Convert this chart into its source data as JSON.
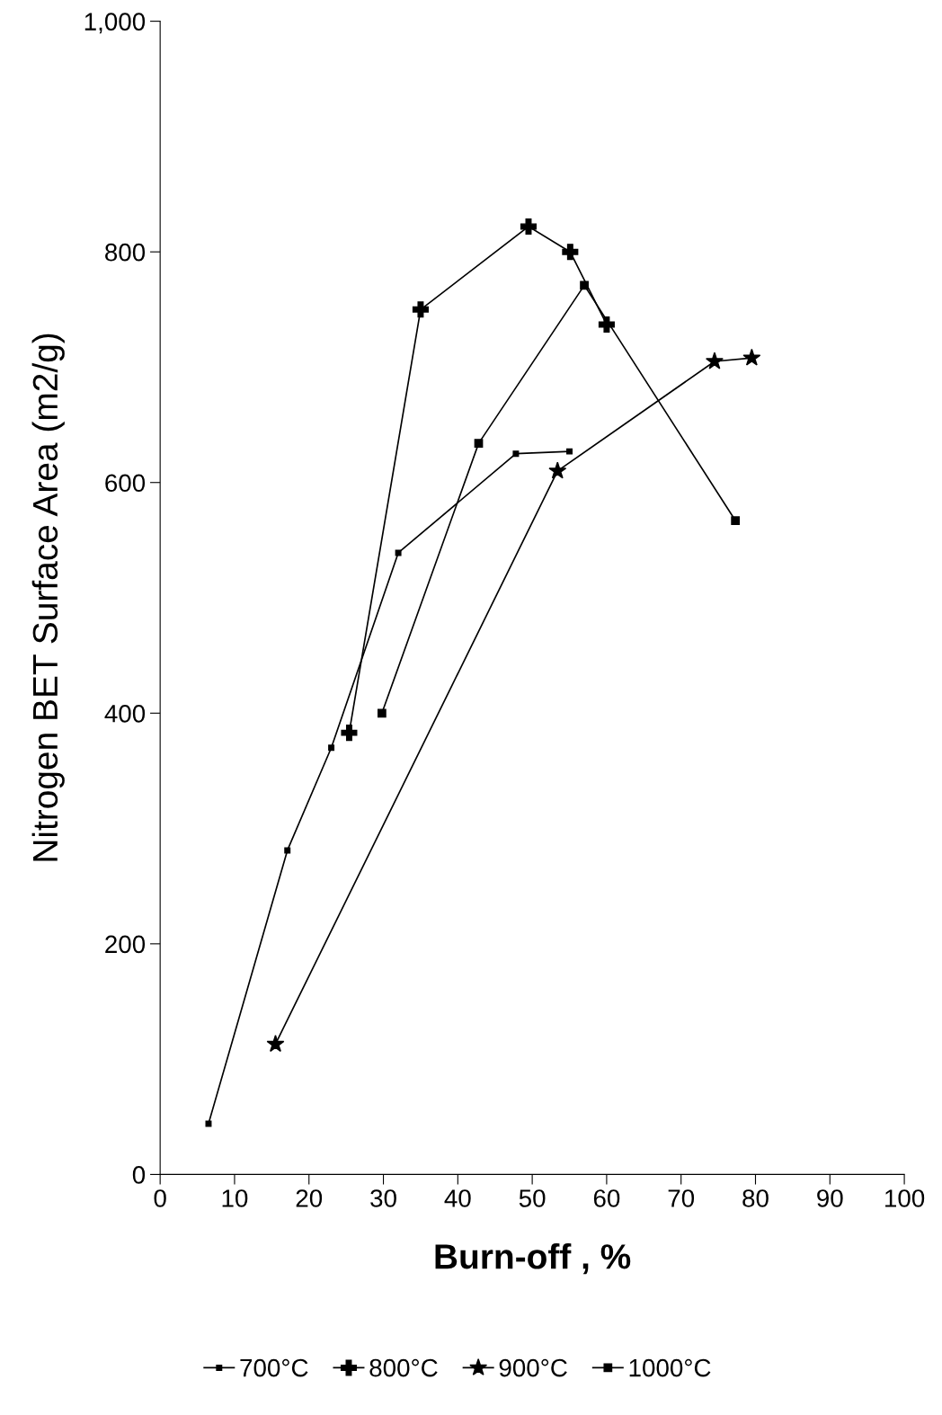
{
  "chart_data": {
    "type": "line",
    "xlabel": "Burn-off , %",
    "ylabel": "Nitrogen BET Surface Area (m2/g)",
    "xlim": [
      0,
      100
    ],
    "xticks": [
      0,
      10,
      20,
      30,
      40,
      50,
      60,
      70,
      80,
      90,
      100
    ],
    "ylim": [
      0,
      1000
    ],
    "yticks": [
      0,
      200,
      400,
      600,
      800,
      {
        "value": 1000,
        "label": "1,000"
      }
    ],
    "grid": false,
    "legend": "bottom",
    "series": [
      {
        "name": "700°C",
        "color": "#000000",
        "marker": "square",
        "x": [
          6.5,
          17.1,
          23.0,
          32.0,
          47.8,
          55.0
        ],
        "values": [
          44,
          281,
          370,
          539,
          625,
          627
        ]
      },
      {
        "name": "800°C",
        "color": "#000000",
        "marker": "cross",
        "x": [
          25.4,
          35.0,
          49.5,
          55.1,
          60.0
        ],
        "values": [
          383,
          750,
          822,
          800,
          737
        ]
      },
      {
        "name": "900°C",
        "color": "#000000",
        "marker": "star",
        "x": [
          15.5,
          53.4,
          74.5,
          79.5
        ],
        "values": [
          113,
          610,
          705,
          708
        ]
      },
      {
        "name": "1000°C",
        "color": "#000000",
        "marker": "square",
        "x": [
          29.8,
          42.8,
          57.0,
          77.3
        ],
        "values": [
          400,
          634,
          771,
          567
        ]
      }
    ]
  }
}
